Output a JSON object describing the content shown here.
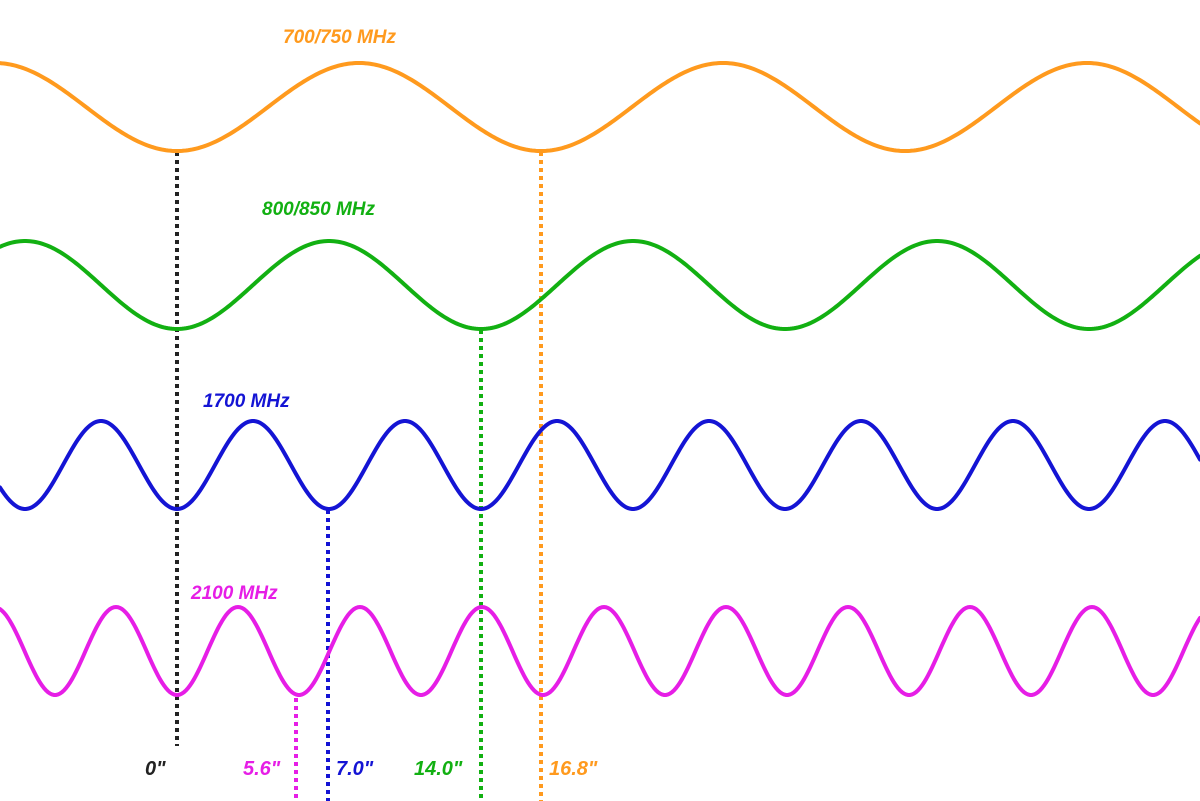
{
  "waves": [
    {
      "id": "700",
      "label": "700/750 MHz",
      "color": "#ff9a1e"
    },
    {
      "id": "800",
      "label": "800/850 MHz",
      "color": "#12b012"
    },
    {
      "id": "1700",
      "label": "1700 MHz",
      "color": "#1414d4"
    },
    {
      "id": "2100",
      "label": "2100 MHz",
      "color": "#e61ee6"
    }
  ],
  "markers": [
    {
      "id": "zero",
      "label": "0\"",
      "color": "#222222"
    },
    {
      "id": "m56",
      "label": "5.6\"",
      "color": "#e61ee6"
    },
    {
      "id": "m70",
      "label": "7.0\"",
      "color": "#1414d4"
    },
    {
      "id": "m140",
      "label": "14.0\"",
      "color": "#12b012"
    },
    {
      "id": "m168",
      "label": "16.8\"",
      "color": "#ff9a1e"
    }
  ]
}
